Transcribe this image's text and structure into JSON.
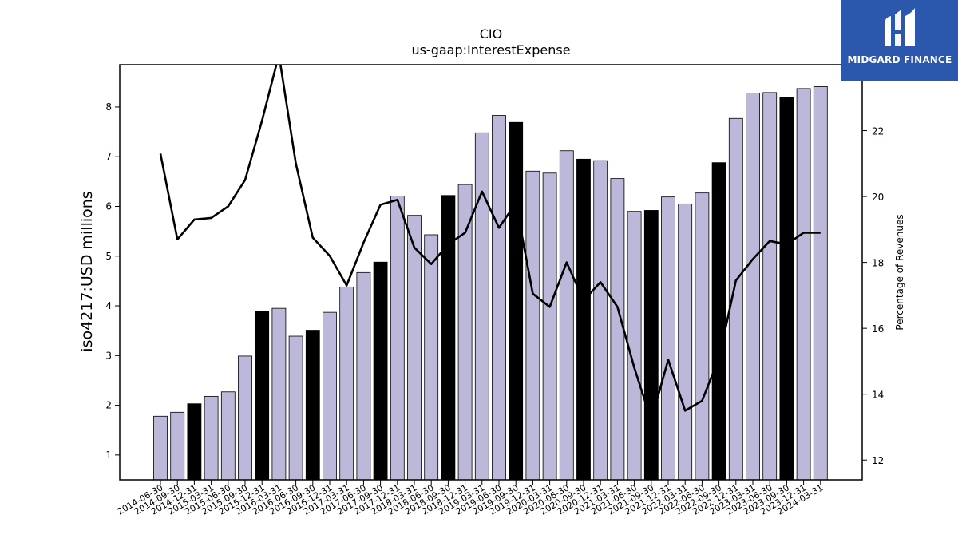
{
  "chart_data": {
    "type": "bar",
    "title": "CIO",
    "subtitle": "us-gaap:InterestExpense",
    "ylabel": "iso4217:USD  millions",
    "y2label": "Percentage of Revenues",
    "ylim": [
      0.5,
      8.85
    ],
    "y2lim": [
      11.4,
      24.0
    ],
    "yticks": [
      1,
      2,
      3,
      4,
      5,
      6,
      7,
      8
    ],
    "y2ticks": [
      12,
      14,
      16,
      18,
      20,
      22
    ],
    "grid": false,
    "categories": [
      "2014-06-30",
      "2014-09-30",
      "2014-12-31",
      "2015-03-31",
      "2015-06-30",
      "2015-09-30",
      "2015-12-31",
      "2016-03-31",
      "2016-06-30",
      "2016-09-30",
      "2016-12-31",
      "2017-03-31",
      "2017-06-30",
      "2017-09-30",
      "2017-12-31",
      "2018-03-31",
      "2018-06-30",
      "2018-09-30",
      "2018-12-31",
      "2019-03-31",
      "2019-06-30",
      "2019-09-30",
      "2019-12-31",
      "2020-03-31",
      "2020-06-30",
      "2020-09-30",
      "2020-12-31",
      "2021-03-31",
      "2021-06-30",
      "2021-09-30",
      "2021-12-31",
      "2022-03-31",
      "2022-06-30",
      "2022-09-30",
      "2022-12-31",
      "2023-03-31",
      "2023-06-30",
      "2023-09-30",
      "2023-12-31",
      "2024-03-31"
    ],
    "series": [
      {
        "type": "bar",
        "values": [
          1.78,
          1.86,
          2.03,
          2.18,
          2.27,
          2.99,
          3.89,
          3.95,
          3.39,
          3.51,
          3.87,
          4.38,
          4.67,
          4.88,
          6.21,
          5.82,
          5.43,
          6.22,
          6.44,
          7.48,
          7.83,
          7.69,
          6.71,
          6.67,
          7.12,
          6.95,
          6.92,
          6.56,
          5.9,
          5.92,
          6.19,
          6.05,
          6.27,
          6.88,
          7.77,
          8.28,
          8.29,
          8.19,
          8.37,
          8.41
        ],
        "highlight": [
          false,
          false,
          true,
          false,
          false,
          false,
          true,
          false,
          false,
          true,
          false,
          false,
          false,
          true,
          false,
          false,
          false,
          true,
          false,
          false,
          false,
          true,
          false,
          false,
          false,
          true,
          false,
          false,
          false,
          true,
          false,
          false,
          false,
          true,
          false,
          false,
          false,
          true,
          false,
          false
        ],
        "color": "#bcb8d9",
        "highlight_color": "#000000"
      },
      {
        "type": "line",
        "axis": "right",
        "values": [
          21.3,
          18.7,
          19.3,
          19.35,
          19.7,
          20.5,
          22.3,
          24.3,
          21.0,
          18.75,
          18.2,
          17.3,
          18.6,
          19.75,
          19.9,
          18.45,
          17.95,
          18.55,
          18.9,
          20.15,
          19.05,
          19.8,
          17.05,
          16.65,
          18.0,
          16.85,
          17.4,
          16.65,
          14.8,
          13.2,
          15.05,
          13.5,
          13.8,
          15.1,
          17.45,
          18.1,
          18.65,
          18.55,
          18.9,
          18.9
        ],
        "color": "#000000"
      }
    ]
  },
  "logo": {
    "text": "MIDGARD FINANCE",
    "bg": "#2b57ad"
  }
}
